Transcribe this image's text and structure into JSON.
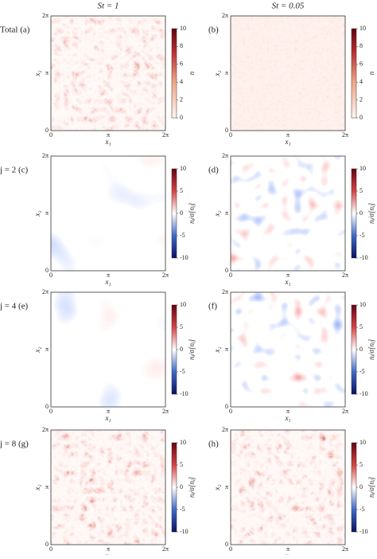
{
  "columns": [
    "St = 1",
    "St = 0.05"
  ],
  "rows": [
    {
      "panels": [
        "Total (a)",
        "(b)"
      ],
      "colorbar": {
        "label": "n",
        "range": [
          0,
          10
        ],
        "ticks": [
          0,
          2,
          4,
          6,
          8,
          10
        ]
      }
    },
    {
      "panels": [
        "j = 2 (c)",
        "(d)"
      ],
      "colorbar": {
        "label": "nⱼ/σ[nⱼ]",
        "range": [
          -10,
          10
        ],
        "ticks": [
          -10,
          -5,
          0,
          5,
          10
        ]
      }
    },
    {
      "panels": [
        "j = 4 (e)",
        "(f)"
      ],
      "colorbar": {
        "label": "nⱼ/σ[nⱼ]",
        "range": [
          -10,
          10
        ],
        "ticks": [
          -10,
          -5,
          0,
          5,
          10
        ]
      }
    },
    {
      "panels": [
        "j = 8 (g)",
        "(h)"
      ],
      "colorbar": {
        "label": "nⱼ/σ[nⱼ]",
        "range": [
          -10,
          10
        ],
        "ticks": [
          -10,
          -5,
          0,
          5,
          10
        ]
      }
    }
  ],
  "axes": {
    "x_label": "x₁",
    "y_label": "x₂",
    "ticks": [
      "0",
      "π",
      "2π"
    ]
  }
}
